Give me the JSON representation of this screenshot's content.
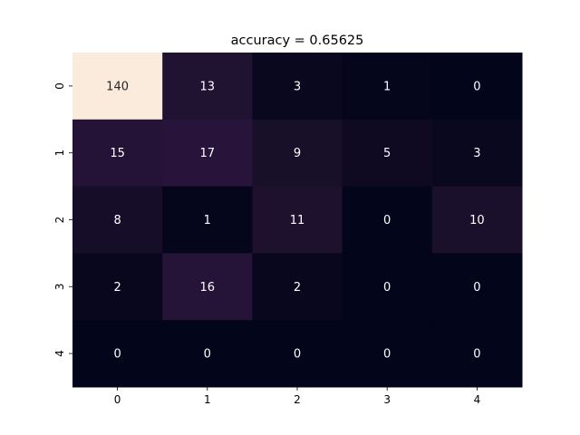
{
  "chart_data": {
    "type": "heatmap",
    "title": "accuracy = 0.65625",
    "x_tick_labels": [
      "0",
      "1",
      "2",
      "3",
      "4"
    ],
    "y_tick_labels": [
      "0",
      "1",
      "2",
      "3",
      "4"
    ],
    "values": [
      [
        140,
        13,
        3,
        1,
        0
      ],
      [
        15,
        17,
        9,
        5,
        3
      ],
      [
        8,
        1,
        11,
        0,
        10
      ],
      [
        2,
        16,
        2,
        0,
        0
      ],
      [
        0,
        0,
        0,
        0,
        0
      ]
    ],
    "colorbar": false,
    "colormap": "rocket",
    "value_range": [
      0,
      140
    ]
  }
}
